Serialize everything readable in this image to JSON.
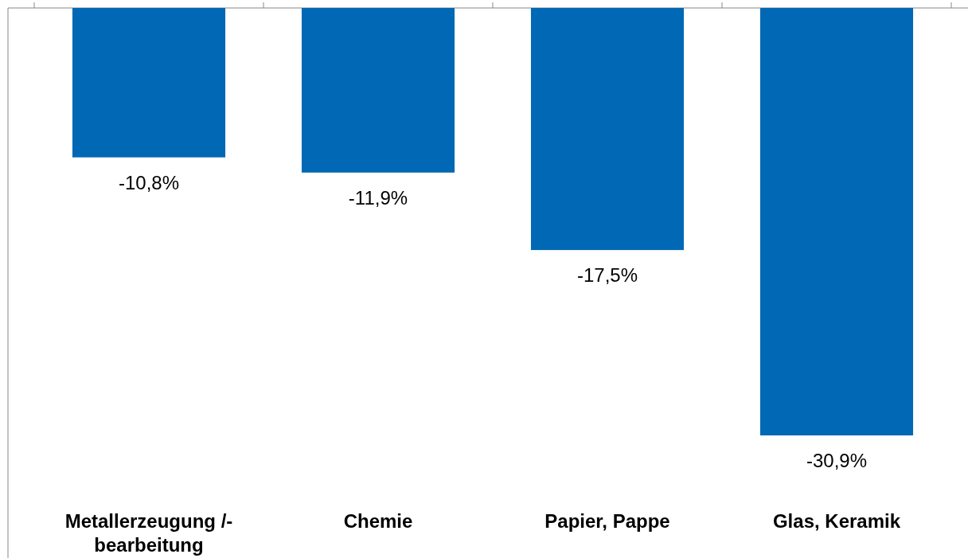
{
  "chart_data": {
    "type": "bar",
    "categories": [
      "Metallerzeugung /-bearbeitung",
      "Chemie",
      "Papier, Pappe",
      "Glas, Keramik"
    ],
    "values": [
      -10.8,
      -11.9,
      -17.5,
      -30.9
    ],
    "value_labels": [
      "-10,8%",
      "-11,9%",
      "-17,5%",
      "-30,9%"
    ],
    "color": "#0068b4"
  }
}
